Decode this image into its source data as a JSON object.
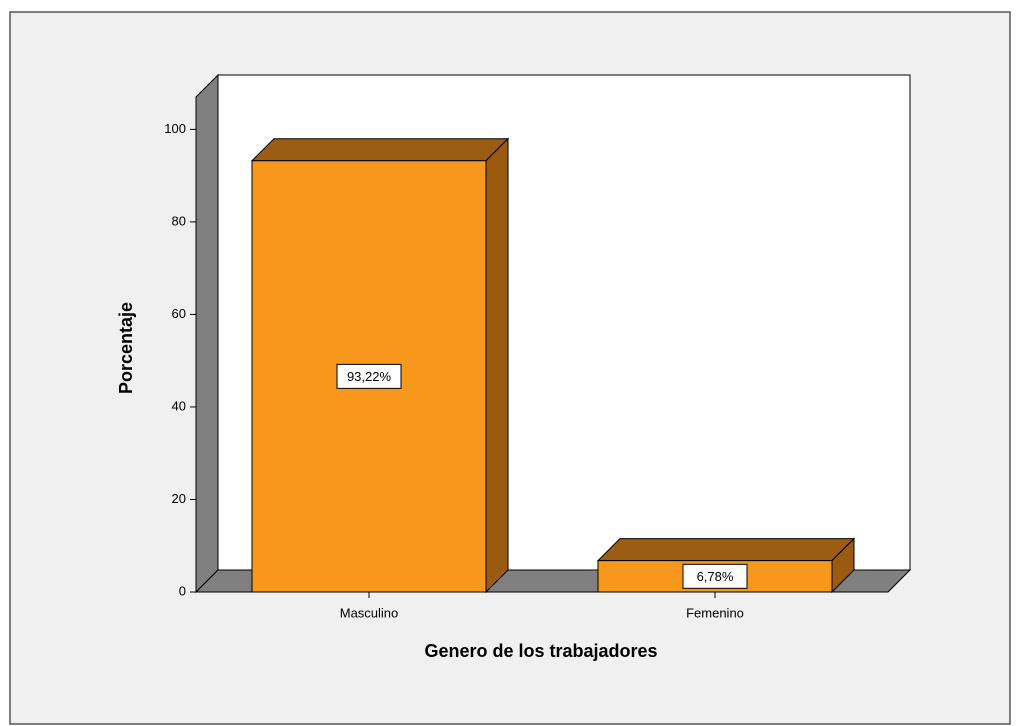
{
  "chart_data": {
    "type": "bar3d",
    "x_label": "Genero de los trabajadores",
    "y_label": "Porcentaje",
    "categories": [
      "Masculino",
      "Femenino"
    ],
    "values": [
      93.22,
      6.78
    ],
    "value_labels": [
      "93,22%",
      "6,78%"
    ],
    "color": "#f7981d",
    "ylim": [
      0,
      107
    ],
    "yticks": [
      0,
      20,
      40,
      60,
      80,
      100
    ]
  }
}
